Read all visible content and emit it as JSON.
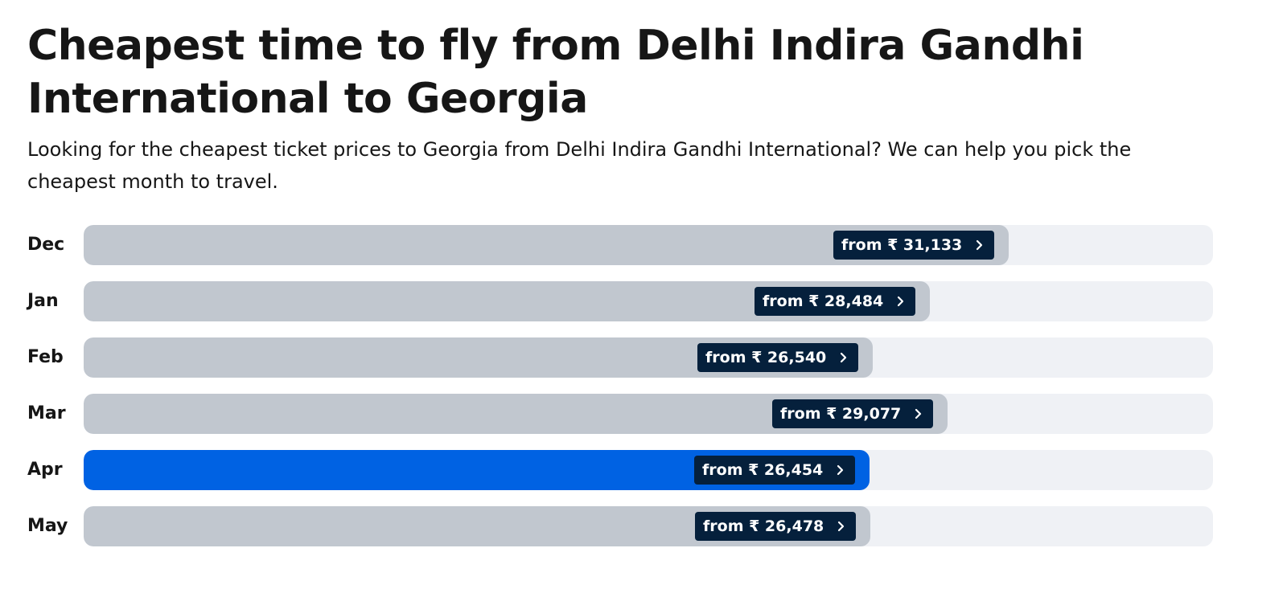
{
  "header": {
    "title": "Cheapest time to fly from Delhi Indira Gandhi International to Georgia",
    "subtitle": "Looking for the cheapest ticket prices to Georgia from Delhi Indira Gandhi International? We can help you pick the cheapest month to travel."
  },
  "colors": {
    "bar": "#c1c7cf",
    "bar_highlight": "#0062e3",
    "track": "#eff1f5",
    "tag": "#05203c",
    "text": "#161616"
  },
  "chart_data": {
    "type": "bar",
    "orientation": "horizontal",
    "title": "Cheapest time to fly from Delhi Indira Gandhi International to Georgia",
    "xlabel": "",
    "ylabel": "",
    "currency": "₹",
    "xlim": [
      0,
      38000
    ],
    "categories": [
      "Dec",
      "Jan",
      "Feb",
      "Mar",
      "Apr",
      "May"
    ],
    "values": [
      31133,
      28484,
      26540,
      29077,
      26454,
      26478
    ],
    "labels": [
      "from ₹ 31,133",
      "from ₹ 28,484",
      "from ₹ 26,540",
      "from ₹ 29,077",
      "from ₹ 26,454",
      "from ₹ 26,478"
    ],
    "highlight": "Apr"
  }
}
